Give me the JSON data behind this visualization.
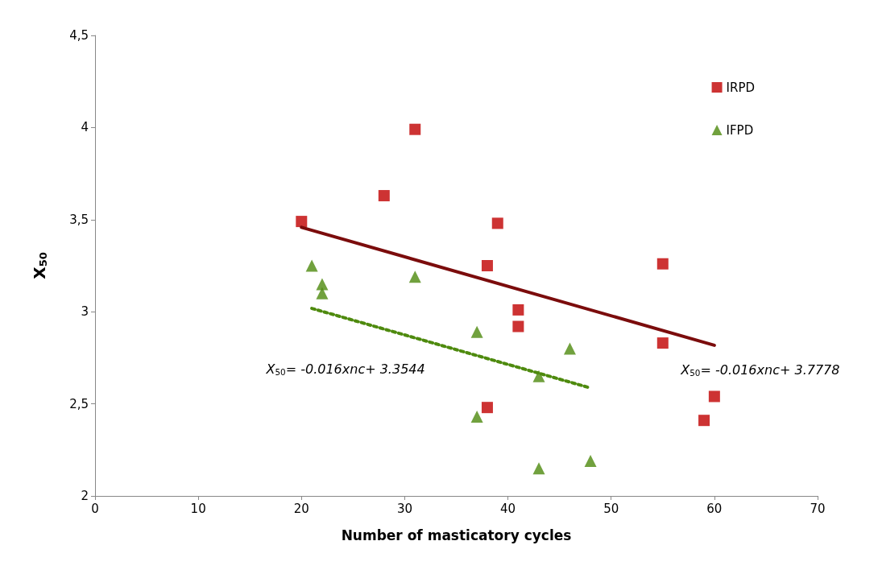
{
  "chart_data": {
    "type": "scatter",
    "xlabel": "Number of masticatory cycles",
    "ylabel": "X$_{50}$",
    "xlim": [
      0,
      70
    ],
    "xticks": [
      0,
      10,
      20,
      30,
      40,
      50,
      60,
      70
    ],
    "ylim": [
      2,
      4.5
    ],
    "yticks": [
      2,
      {
        "value": 2.5,
        "label": "2,5"
      },
      3,
      {
        "value": 3.5,
        "label": "3,5"
      },
      4,
      {
        "value": 4.5,
        "label": "4,5"
      }
    ],
    "grid": false,
    "legend": "top right",
    "series": [
      {
        "name": "IRPD",
        "marker": "square",
        "color": "#c00000",
        "x": [
          20,
          28,
          31,
          39,
          38,
          41,
          41,
          38,
          55,
          55,
          60,
          59
        ],
        "values": [
          3.49,
          3.63,
          3.99,
          3.48,
          3.25,
          3.01,
          2.92,
          2.48,
          3.26,
          2.83,
          2.54,
          2.41
        ]
      },
      {
        "name": "IFPD",
        "marker": "triangle",
        "color": "#4e8a0e",
        "x": [
          21,
          22,
          22,
          31,
          37,
          46,
          43,
          37,
          43,
          48
        ],
        "values": [
          3.25,
          3.15,
          3.1,
          3.19,
          2.89,
          2.8,
          2.65,
          2.43,
          2.15,
          2.19
        ]
      },
      {
        "type": "line",
        "marker": "none",
        "line_style": "solid",
        "color": "#7b0c0c",
        "x": [
          20,
          60
        ],
        "values": [
          3.458,
          2.818
        ]
      },
      {
        "type": "line",
        "marker": "none",
        "line_style": "dotted",
        "color": "#4e8a0e",
        "x": [
          21,
          48
        ],
        "values": [
          3.018,
          2.586
        ]
      }
    ],
    "annotations": [
      "X$_{50}$= -0.016xnc+ 3.7778",
      "X$_{50}$= -0.016xnc+ 3.3544"
    ]
  }
}
